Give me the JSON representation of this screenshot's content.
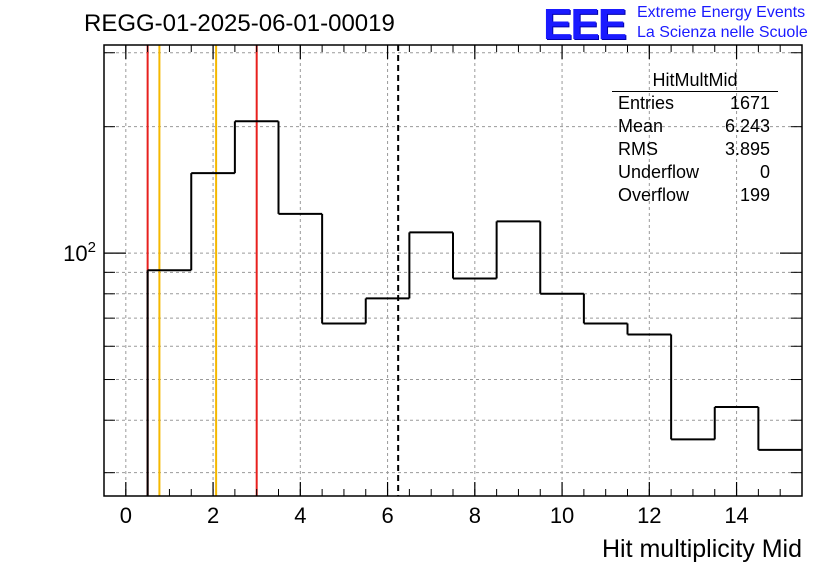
{
  "header": {
    "title": "REGG-01-2025-06-01-00019"
  },
  "logo": {
    "mark": "EEE",
    "line1": "Extreme Energy Events",
    "line2": "La Scienza nelle Scuole",
    "color": "#1a1aff"
  },
  "stats": {
    "title": "HitMultMid",
    "rows": [
      {
        "label": "Entries",
        "value": "1671"
      },
      {
        "label": "Mean",
        "value": "6.243"
      },
      {
        "label": "RMS",
        "value": "3.895"
      },
      {
        "label": "Underflow",
        "value": "0"
      },
      {
        "label": "Overflow",
        "value": "199"
      }
    ]
  },
  "chart_data": {
    "type": "histogram",
    "title": "REGG-01-2025-06-01-00019",
    "xlabel": "Hit multiplicity Mid",
    "ylabel": "",
    "yscale": "log",
    "xlim": [
      -0.5,
      15.5
    ],
    "ylim": [
      26.4,
      313
    ],
    "grid": true,
    "bins": [
      {
        "low": 0.5,
        "high": 1.5,
        "value": 91
      },
      {
        "low": 1.5,
        "high": 2.5,
        "value": 155
      },
      {
        "low": 2.5,
        "high": 3.5,
        "value": 206
      },
      {
        "low": 3.5,
        "high": 4.5,
        "value": 124
      },
      {
        "low": 4.5,
        "high": 5.5,
        "value": 68
      },
      {
        "low": 5.5,
        "high": 6.5,
        "value": 78
      },
      {
        "low": 6.5,
        "high": 7.5,
        "value": 112
      },
      {
        "low": 7.5,
        "high": 8.5,
        "value": 87
      },
      {
        "low": 8.5,
        "high": 9.5,
        "value": 119
      },
      {
        "low": 9.5,
        "high": 10.5,
        "value": 80
      },
      {
        "low": 10.5,
        "high": 11.5,
        "value": 68
      },
      {
        "low": 11.5,
        "high": 12.5,
        "value": 64
      },
      {
        "low": 12.5,
        "high": 13.5,
        "value": 36
      },
      {
        "low": 13.5,
        "high": 14.5,
        "value": 43
      },
      {
        "low": 14.5,
        "high": 15.5,
        "value": 34
      }
    ],
    "xticks": [
      0,
      2,
      4,
      6,
      8,
      10,
      12,
      14
    ],
    "xtick_labels": [
      "0",
      "2",
      "4",
      "6",
      "8",
      "10",
      "12",
      "14"
    ],
    "ytick_major": [
      {
        "value": 100,
        "base": "10",
        "exp": "2"
      }
    ],
    "ytick_minor": [
      30,
      40,
      50,
      60,
      70,
      80,
      90,
      200,
      300
    ],
    "vlines": [
      {
        "x": 0.5,
        "color": "#e8201e",
        "style": "solid"
      },
      {
        "x": 0.77,
        "color": "#f5b800",
        "style": "solid"
      },
      {
        "x": 2.07,
        "color": "#f5b800",
        "style": "solid"
      },
      {
        "x": 3.0,
        "color": "#e8201e",
        "style": "solid"
      },
      {
        "x": 6.243,
        "color": "#000000",
        "style": "dashed"
      }
    ]
  }
}
